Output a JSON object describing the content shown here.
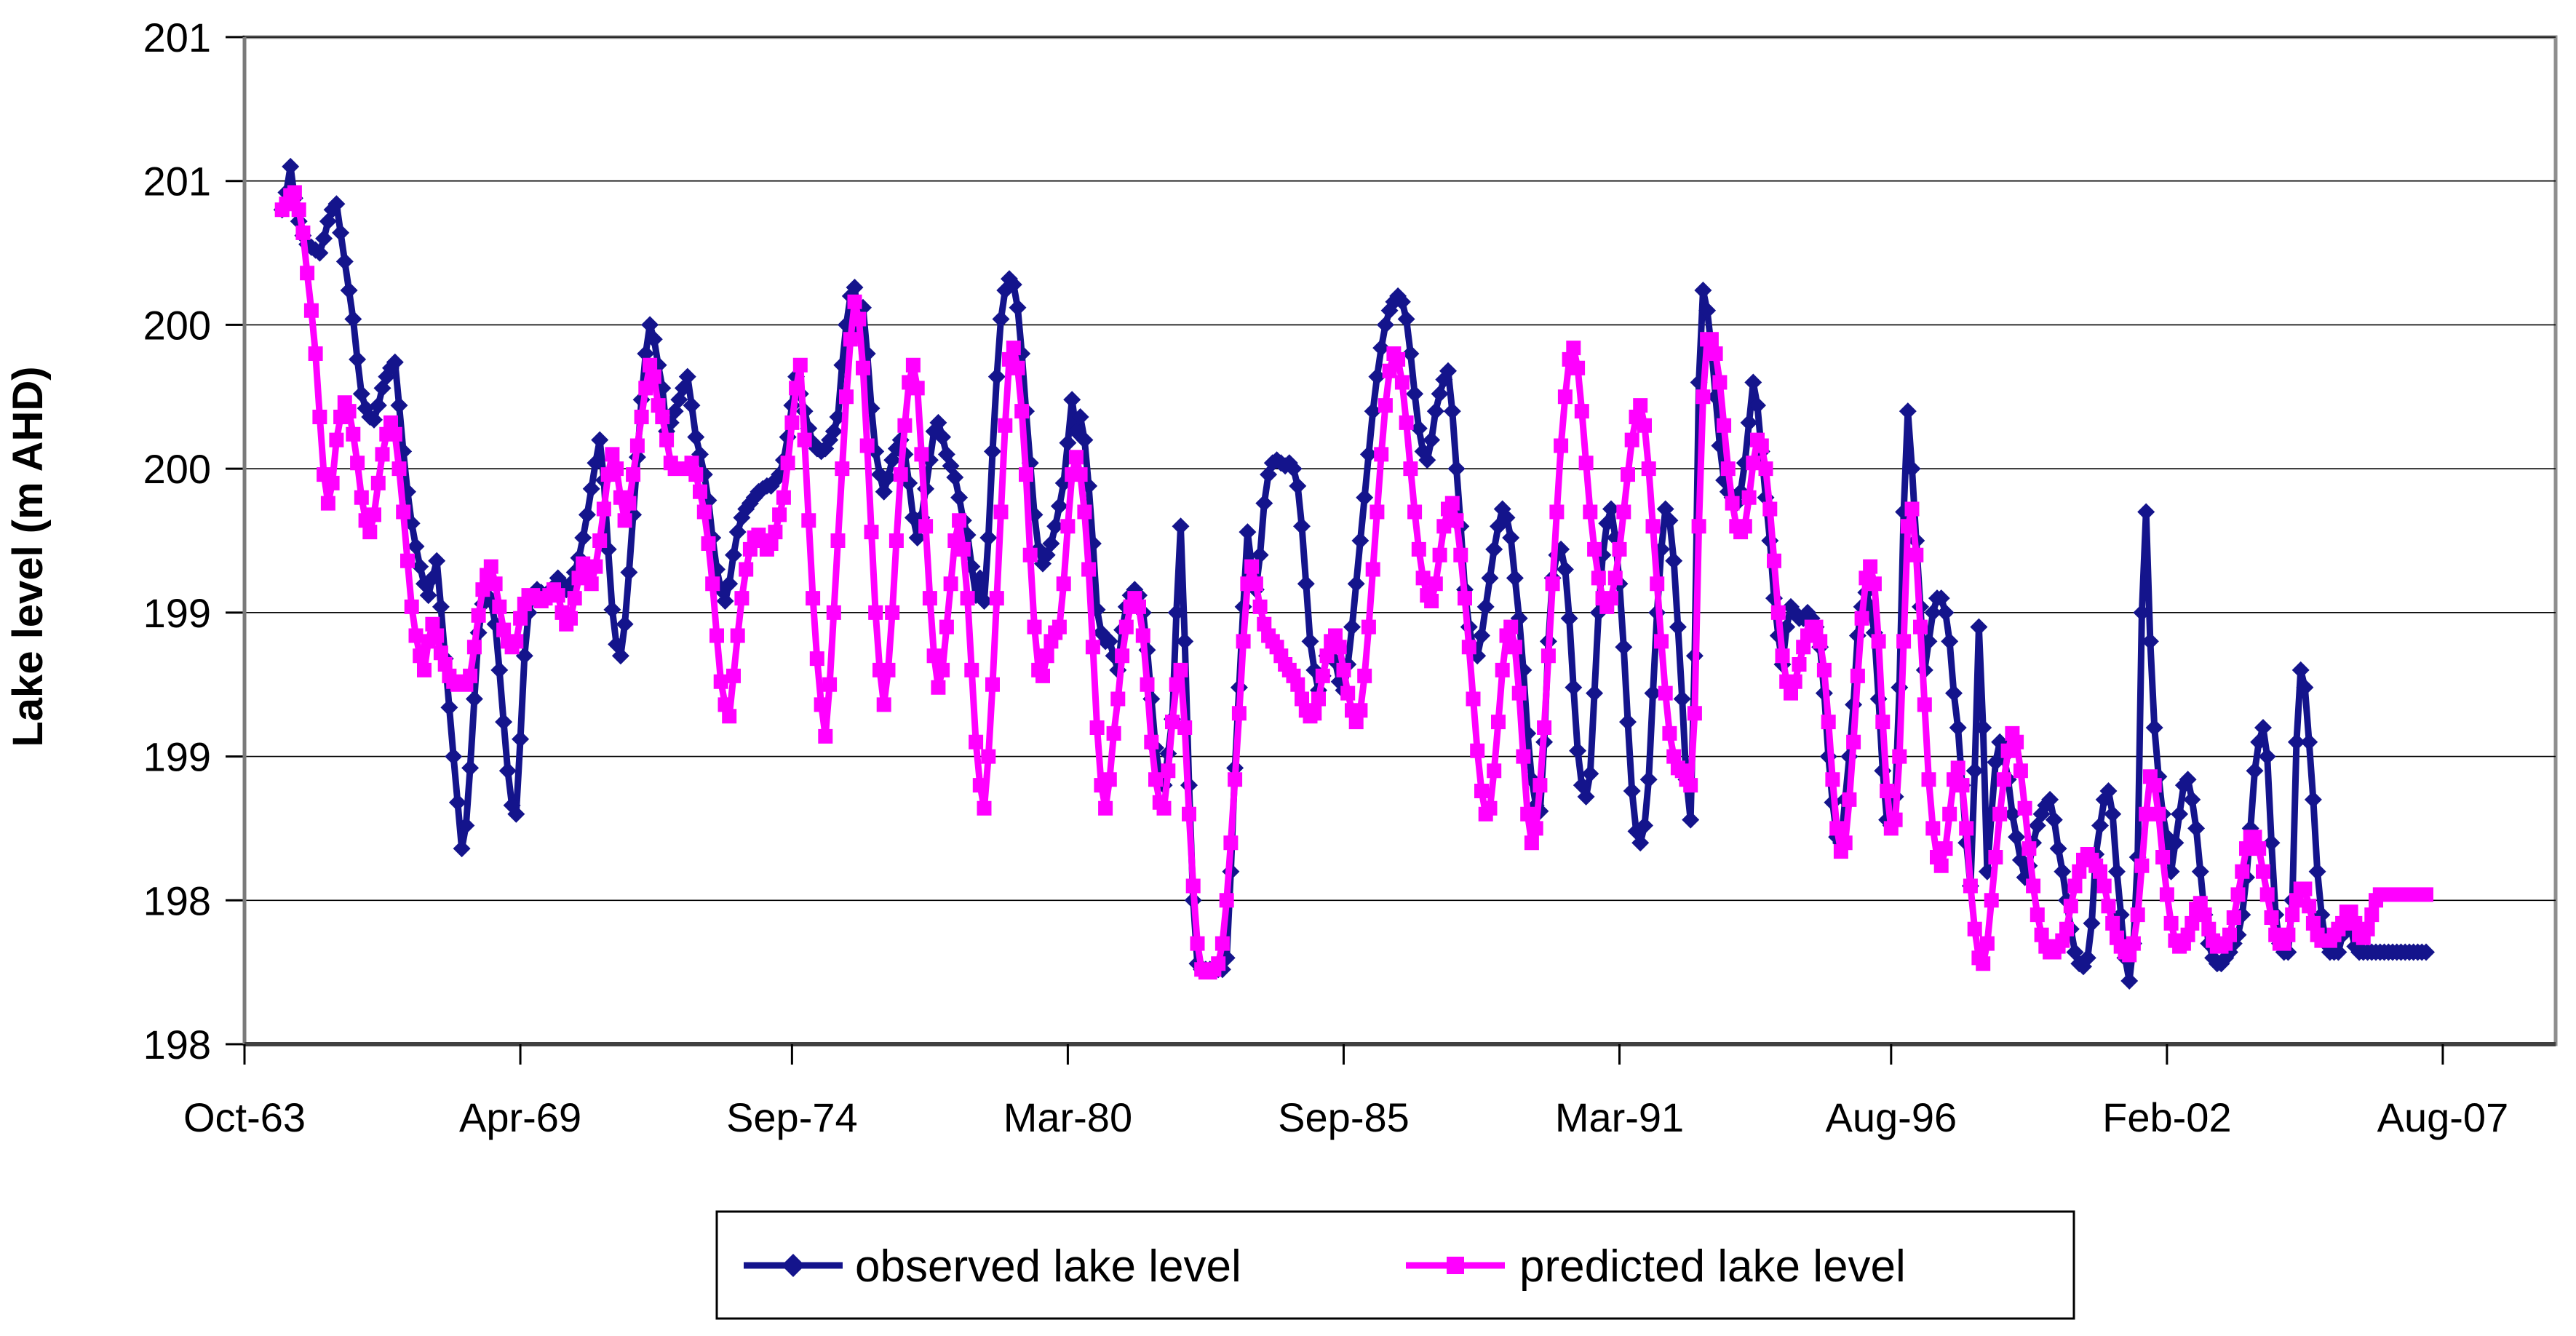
{
  "chart_data": {
    "type": "line",
    "title": "",
    "ylabel": "Lake level (m AHD)",
    "xlabel": "",
    "grid": "horizontal",
    "legend_position": "bottom",
    "ylim": [
      197.5,
      201
    ],
    "y_ticks": {
      "values": [
        197.5,
        198.0,
        198.5,
        199.0,
        199.5,
        200.0,
        200.5,
        201.0
      ],
      "labels": [
        "198",
        "198",
        "199",
        "199",
        "200",
        "200",
        "201",
        "201"
      ]
    },
    "x_tick_labels": [
      "Oct-63",
      "Apr-69",
      "Sep-74",
      "Mar-80",
      "Sep-85",
      "Mar-91",
      "Aug-96",
      "Feb-02",
      "Aug-07"
    ],
    "x_tick_months": [
      0,
      66,
      131,
      197,
      263,
      329,
      394,
      460,
      526
    ],
    "x_axis_month_span": 553,
    "start_month": 9,
    "series": [
      {
        "name": "observed lake level",
        "color": "#14148C",
        "marker": "diamond",
        "values": [
          200.4,
          200.46,
          200.55,
          200.44,
          200.36,
          200.31,
          200.28,
          200.27,
          200.26,
          200.25,
          200.3,
          200.36,
          200.4,
          200.42,
          200.32,
          200.22,
          200.12,
          200.02,
          199.88,
          199.76,
          199.71,
          199.68,
          199.67,
          199.72,
          199.78,
          199.82,
          199.85,
          199.87,
          199.72,
          199.56,
          199.42,
          199.31,
          199.23,
          199.16,
          199.1,
          199.06,
          199.12,
          199.18,
          199.02,
          198.84,
          198.67,
          198.5,
          198.34,
          198.18,
          198.26,
          198.46,
          198.7,
          198.93,
          199.03,
          199.06,
          199.04,
          198.96,
          198.8,
          198.62,
          198.45,
          198.33,
          198.3,
          198.56,
          198.85,
          199.0,
          199.06,
          199.08,
          199.07,
          199.06,
          199.06,
          199.09,
          199.12,
          199.1,
          199.08,
          199.1,
          199.14,
          199.19,
          199.26,
          199.34,
          199.43,
          199.52,
          199.6,
          199.46,
          199.22,
          199.01,
          198.89,
          198.85,
          198.96,
          199.14,
          199.34,
          199.54,
          199.74,
          199.9,
          200.0,
          199.95,
          199.86,
          199.78,
          199.63,
          199.66,
          199.7,
          199.74,
          199.78,
          199.82,
          199.72,
          199.61,
          199.55,
          199.48,
          199.39,
          199.26,
          199.15,
          199.08,
          199.04,
          199.1,
          199.2,
          199.28,
          199.33,
          199.36,
          199.38,
          199.4,
          199.42,
          199.43,
          199.44,
          199.44,
          199.46,
          199.48,
          199.53,
          199.61,
          199.72,
          199.82,
          199.76,
          199.7,
          199.64,
          199.59,
          199.57,
          199.56,
          199.57,
          199.6,
          199.63,
          199.68,
          199.86,
          200.0,
          200.1,
          200.13,
          199.99,
          200.06,
          199.9,
          199.71,
          199.56,
          199.48,
          199.42,
          199.47,
          199.53,
          199.57,
          199.6,
          199.55,
          199.45,
          199.33,
          199.26,
          199.33,
          199.43,
          199.53,
          199.63,
          199.66,
          199.61,
          199.55,
          199.51,
          199.47,
          199.4,
          199.32,
          199.27,
          199.16,
          199.06,
          199.12,
          199.04,
          199.26,
          199.56,
          199.82,
          200.02,
          200.12,
          200.16,
          200.14,
          200.06,
          199.9,
          199.7,
          199.52,
          199.34,
          199.22,
          199.17,
          199.2,
          199.24,
          199.3,
          199.37,
          199.45,
          199.59,
          199.74,
          199.63,
          199.68,
          199.6,
          199.44,
          199.24,
          199.01,
          198.93,
          198.9,
          198.9,
          198.85,
          198.8,
          198.94,
          199.02,
          199.06,
          199.08,
          199.06,
          199.0,
          198.87,
          198.7,
          198.53,
          198.43,
          198.4,
          198.51,
          198.63,
          199.0,
          199.3,
          198.9,
          198.4,
          198.0,
          197.78,
          197.76,
          197.76,
          197.76,
          197.76,
          197.76,
          197.76,
          197.8,
          198.1,
          198.46,
          198.74,
          199.02,
          199.28,
          199.16,
          199.08,
          199.2,
          199.38,
          199.48,
          199.52,
          199.53,
          199.52,
          199.51,
          199.52,
          199.5,
          199.44,
          199.3,
          199.1,
          198.9,
          198.8,
          198.73,
          198.78,
          198.85,
          198.87,
          198.83,
          198.76,
          198.73,
          198.82,
          198.95,
          199.1,
          199.25,
          199.4,
          199.55,
          199.7,
          199.82,
          199.92,
          200.0,
          200.05,
          200.08,
          200.1,
          200.08,
          200.02,
          199.9,
          199.76,
          199.64,
          199.56,
          199.53,
          199.6,
          199.7,
          199.76,
          199.81,
          199.84,
          199.7,
          199.5,
          199.3,
          199.08,
          198.95,
          198.88,
          198.85,
          198.92,
          199.02,
          199.12,
          199.22,
          199.3,
          199.36,
          199.33,
          199.26,
          199.12,
          198.98,
          198.8,
          198.58,
          198.42,
          198.33,
          198.31,
          198.55,
          198.9,
          199.12,
          199.2,
          199.22,
          199.15,
          198.98,
          198.74,
          198.52,
          198.4,
          198.36,
          198.44,
          198.72,
          199.0,
          199.2,
          199.31,
          199.36,
          199.26,
          199.1,
          198.88,
          198.62,
          198.38,
          198.24,
          198.2,
          198.26,
          198.42,
          198.72,
          199.0,
          199.22,
          199.36,
          199.32,
          199.18,
          198.95,
          198.7,
          198.42,
          198.28,
          198.85,
          199.8,
          200.12,
          200.05,
          199.92,
          199.75,
          199.58,
          199.46,
          199.42,
          199.4,
          199.38,
          199.42,
          199.52,
          199.66,
          199.8,
          199.72,
          199.56,
          199.4,
          199.25,
          199.05,
          198.92,
          198.82,
          198.95,
          199.02,
          199.0,
          198.98,
          198.98,
          199.0,
          198.98,
          198.95,
          198.88,
          198.72,
          198.5,
          198.34,
          198.22,
          198.2,
          198.35,
          198.5,
          198.68,
          198.92,
          199.02,
          199.07,
          199.02,
          198.93,
          198.7,
          198.45,
          198.28,
          198.26,
          198.36,
          198.74,
          199.35,
          199.7,
          199.5,
          199.25,
          199.02,
          198.8,
          198.9,
          199.0,
          199.05,
          199.05,
          199.0,
          198.9,
          198.72,
          198.6,
          198.4,
          198.2,
          198.05,
          198.45,
          198.95,
          198.6,
          198.1,
          198.3,
          198.48,
          198.55,
          198.5,
          198.42,
          198.3,
          198.22,
          198.14,
          198.08,
          198.12,
          198.2,
          198.26,
          198.3,
          198.33,
          198.35,
          198.28,
          198.18,
          198.1,
          198.0,
          197.9,
          197.82,
          197.78,
          197.77,
          197.8,
          197.92,
          198.16,
          198.26,
          198.35,
          198.38,
          198.3,
          198.1,
          197.95,
          197.8,
          197.72,
          197.85,
          198.15,
          199.0,
          199.35,
          198.9,
          198.6,
          198.43,
          198.3,
          198.22,
          198.1,
          198.2,
          198.3,
          198.4,
          198.42,
          198.35,
          198.25,
          198.1,
          197.95,
          197.85,
          197.8,
          197.78,
          197.78,
          197.8,
          197.82,
          197.85,
          197.88,
          197.95,
          198.08,
          198.25,
          198.45,
          198.55,
          198.6,
          198.5,
          198.2,
          197.95,
          197.85,
          197.82,
          197.82,
          198.0,
          198.55,
          198.8,
          198.74,
          198.55,
          198.35,
          198.1,
          197.95,
          197.85,
          197.82,
          197.82,
          197.82,
          197.88,
          197.92,
          197.9,
          197.84,
          197.82,
          197.82,
          197.82,
          197.82,
          197.82,
          197.82,
          197.82,
          197.82,
          197.82,
          197.82,
          197.82,
          197.82,
          197.82,
          197.82,
          197.82,
          197.82,
          197.82
        ]
      },
      {
        "name": "predicted lake level",
        "color": "#FF00FF",
        "marker": "square",
        "values": [
          200.4,
          200.42,
          200.45,
          200.46,
          200.4,
          200.32,
          200.18,
          200.05,
          199.9,
          199.68,
          199.48,
          199.38,
          199.45,
          199.6,
          199.68,
          199.73,
          199.7,
          199.62,
          199.52,
          199.4,
          199.32,
          199.28,
          199.34,
          199.45,
          199.55,
          199.62,
          199.66,
          199.62,
          199.5,
          199.35,
          199.18,
          199.02,
          198.92,
          198.85,
          198.8,
          198.9,
          198.96,
          198.92,
          198.86,
          198.82,
          198.78,
          198.76,
          198.75,
          198.76,
          198.75,
          198.78,
          198.88,
          198.99,
          199.08,
          199.13,
          199.16,
          199.1,
          199.02,
          198.94,
          198.9,
          198.88,
          198.9,
          198.98,
          199.03,
          199.06,
          199.06,
          199.05,
          199.04,
          199.05,
          199.06,
          199.08,
          199.06,
          199.0,
          198.96,
          198.98,
          199.05,
          199.12,
          199.17,
          199.14,
          199.1,
          199.16,
          199.25,
          199.36,
          199.48,
          199.55,
          199.5,
          199.4,
          199.32,
          199.38,
          199.48,
          199.58,
          199.68,
          199.78,
          199.86,
          199.82,
          199.72,
          199.68,
          199.6,
          199.52,
          199.5,
          199.5,
          199.5,
          199.5,
          199.52,
          199.48,
          199.42,
          199.35,
          199.24,
          199.1,
          198.92,
          198.76,
          198.68,
          198.64,
          198.78,
          198.92,
          199.05,
          199.15,
          199.22,
          199.26,
          199.27,
          199.25,
          199.22,
          199.24,
          199.28,
          199.34,
          199.4,
          199.52,
          199.66,
          199.78,
          199.86,
          199.6,
          199.32,
          199.05,
          198.84,
          198.68,
          198.57,
          198.75,
          199.0,
          199.25,
          199.5,
          199.75,
          199.95,
          200.08,
          200.02,
          199.85,
          199.58,
          199.28,
          199.0,
          198.8,
          198.68,
          198.8,
          199.0,
          199.25,
          199.48,
          199.65,
          199.8,
          199.86,
          199.78,
          199.55,
          199.3,
          199.05,
          198.85,
          198.74,
          198.8,
          198.95,
          199.1,
          199.25,
          199.32,
          199.22,
          199.05,
          198.8,
          198.55,
          198.4,
          198.32,
          198.5,
          198.75,
          199.05,
          199.35,
          199.65,
          199.88,
          199.92,
          199.85,
          199.7,
          199.48,
          199.2,
          198.95,
          198.8,
          198.78,
          198.85,
          198.9,
          198.93,
          198.95,
          199.1,
          199.3,
          199.48,
          199.54,
          199.48,
          199.35,
          199.15,
          198.88,
          198.6,
          198.4,
          198.32,
          198.42,
          198.58,
          198.7,
          198.85,
          198.95,
          199.02,
          199.05,
          199.02,
          198.92,
          198.75,
          198.55,
          198.42,
          198.34,
          198.32,
          198.45,
          198.62,
          198.75,
          198.8,
          198.6,
          198.3,
          198.05,
          197.85,
          197.76,
          197.75,
          197.75,
          197.76,
          197.78,
          197.85,
          198.0,
          198.2,
          198.42,
          198.65,
          198.9,
          199.1,
          199.16,
          199.1,
          199.02,
          198.96,
          198.92,
          198.9,
          198.88,
          198.85,
          198.82,
          198.8,
          198.78,
          198.75,
          198.7,
          198.66,
          198.64,
          198.65,
          198.7,
          198.78,
          198.85,
          198.9,
          198.92,
          198.88,
          198.8,
          198.72,
          198.66,
          198.62,
          198.66,
          198.78,
          198.95,
          199.15,
          199.35,
          199.55,
          199.72,
          199.84,
          199.9,
          199.88,
          199.8,
          199.66,
          199.5,
          199.35,
          199.22,
          199.12,
          199.06,
          199.04,
          199.1,
          199.2,
          199.3,
          199.36,
          199.38,
          199.32,
          199.2,
          199.05,
          198.88,
          198.7,
          198.52,
          198.38,
          198.3,
          198.32,
          198.45,
          198.62,
          198.8,
          198.92,
          198.95,
          198.88,
          198.72,
          198.5,
          198.3,
          198.2,
          198.25,
          198.4,
          198.6,
          198.85,
          199.1,
          199.35,
          199.58,
          199.75,
          199.88,
          199.92,
          199.85,
          199.7,
          199.52,
          199.35,
          199.22,
          199.12,
          199.05,
          199.02,
          199.05,
          199.12,
          199.22,
          199.35,
          199.48,
          199.6,
          199.68,
          199.72,
          199.65,
          199.5,
          199.3,
          199.1,
          198.9,
          198.72,
          198.58,
          198.5,
          198.46,
          198.45,
          198.42,
          198.4,
          198.65,
          199.3,
          199.75,
          199.95,
          199.95,
          199.9,
          199.8,
          199.65,
          199.5,
          199.38,
          199.3,
          199.28,
          199.3,
          199.4,
          199.52,
          199.6,
          199.58,
          199.5,
          199.36,
          199.18,
          199.0,
          198.85,
          198.76,
          198.72,
          198.76,
          198.82,
          198.88,
          198.92,
          198.95,
          198.95,
          198.9,
          198.8,
          198.62,
          198.42,
          198.25,
          198.17,
          198.2,
          198.35,
          198.55,
          198.78,
          198.98,
          199.12,
          199.16,
          199.1,
          198.9,
          198.62,
          198.38,
          198.25,
          198.28,
          198.5,
          198.9,
          199.3,
          199.36,
          199.2,
          198.95,
          198.68,
          198.42,
          198.25,
          198.15,
          198.12,
          198.18,
          198.3,
          198.42,
          198.46,
          198.4,
          198.25,
          198.05,
          197.9,
          197.8,
          197.78,
          197.85,
          198.0,
          198.15,
          198.3,
          198.42,
          198.52,
          198.58,
          198.55,
          198.45,
          198.32,
          198.18,
          198.05,
          197.95,
          197.88,
          197.84,
          197.82,
          197.82,
          197.84,
          197.86,
          197.9,
          197.98,
          198.05,
          198.1,
          198.14,
          198.16,
          198.14,
          198.12,
          198.1,
          198.05,
          197.98,
          197.92,
          197.87,
          197.84,
          197.82,
          197.81,
          197.85,
          197.95,
          198.12,
          198.3,
          198.43,
          198.4,
          198.3,
          198.15,
          198.02,
          197.92,
          197.86,
          197.84,
          197.85,
          197.88,
          197.92,
          197.97,
          197.99,
          197.95,
          197.9,
          197.86,
          197.84,
          197.84,
          197.85,
          197.88,
          197.94,
          198.02,
          198.1,
          198.18,
          198.22,
          198.22,
          198.18,
          198.1,
          198.02,
          197.94,
          197.88,
          197.85,
          197.85,
          197.88,
          197.95,
          198.0,
          198.04,
          198.04,
          197.98,
          197.92,
          197.88,
          197.86,
          197.86,
          197.86,
          197.88,
          197.9,
          197.92,
          197.96,
          197.96,
          197.92,
          197.88,
          197.87,
          197.9,
          197.95,
          198.0,
          198.02,
          198.02,
          198.02,
          198.02,
          198.02,
          198.02,
          198.02,
          198.02,
          198.02,
          198.02,
          198.02,
          198.02
        ]
      }
    ]
  },
  "colors": {
    "plot_border": "#8E8E8E",
    "gridline": "#000000",
    "axis_line": "#404040",
    "background": "#FFFFFF"
  }
}
